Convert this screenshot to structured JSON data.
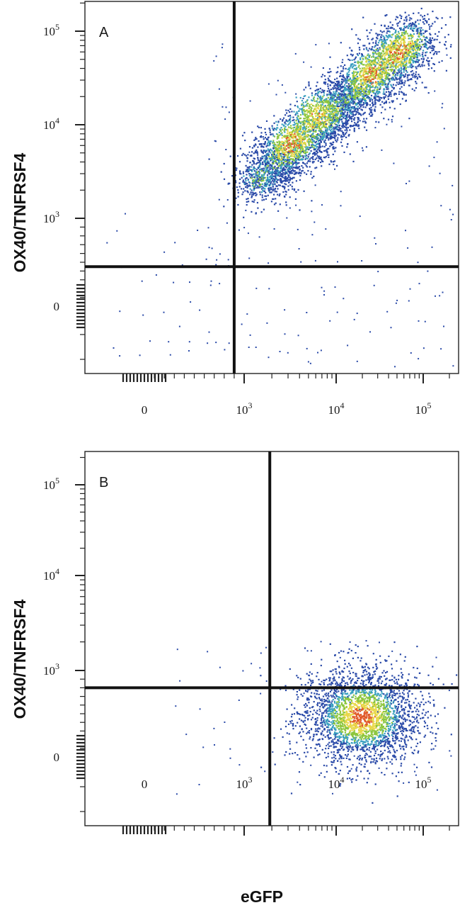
{
  "figure": {
    "x_axis_title": "eGFP",
    "y_axis_title": "OX40/TNFRSF4"
  },
  "chart_data": [
    {
      "type": "scatter",
      "panel": "A",
      "xlabel": "",
      "ylabel": "OX40/TNFRSF4",
      "x_scale": "biexponential",
      "y_scale": "biexponential",
      "x_ticks": [
        {
          "value": 0,
          "label": "0"
        },
        {
          "value": 1000,
          "label": "10",
          "exp": "3"
        },
        {
          "value": 10000,
          "label": "10",
          "exp": "4"
        },
        {
          "value": 100000,
          "label": "10",
          "exp": "5"
        }
      ],
      "y_ticks": [
        {
          "value": 0,
          "label": "0"
        },
        {
          "value": 1000,
          "label": "10",
          "exp": "3"
        },
        {
          "value": 10000,
          "label": "10",
          "exp": "4"
        },
        {
          "value": 100000,
          "label": "10",
          "exp": "5"
        }
      ],
      "gates": {
        "x": 900,
        "y": 450
      },
      "density": "pseudocolor",
      "populations": [
        {
          "x_center": 10000,
          "y_center": 15000,
          "note": "diagonal upper-right population"
        }
      ]
    },
    {
      "type": "scatter",
      "panel": "B",
      "xlabel": "eGFP",
      "ylabel": "OX40/TNFRSF4",
      "x_scale": "biexponential",
      "y_scale": "biexponential",
      "x_ticks": [
        {
          "value": 0,
          "label": "0"
        },
        {
          "value": 1000,
          "label": "10",
          "exp": "3"
        },
        {
          "value": 10000,
          "label": "10",
          "exp": "4"
        },
        {
          "value": 100000,
          "label": "10",
          "exp": "5"
        }
      ],
      "y_ticks": [
        {
          "value": 0,
          "label": "0"
        },
        {
          "value": 1000,
          "label": "10",
          "exp": "3"
        },
        {
          "value": 10000,
          "label": "10",
          "exp": "4"
        },
        {
          "value": 100000,
          "label": "10",
          "exp": "5"
        }
      ],
      "gates": {
        "x": 1900,
        "y": 800
      },
      "density": "pseudocolor",
      "populations": [
        {
          "x_center": 20000,
          "y_center": 250,
          "note": "lower-right population"
        }
      ]
    }
  ],
  "colors": {
    "sparse": "#2a4aa8",
    "low": "#3aa0c0",
    "mid": "#8cc63e",
    "high": "#e8d84a",
    "peak": "#e05a2a",
    "gate": "#111111"
  }
}
